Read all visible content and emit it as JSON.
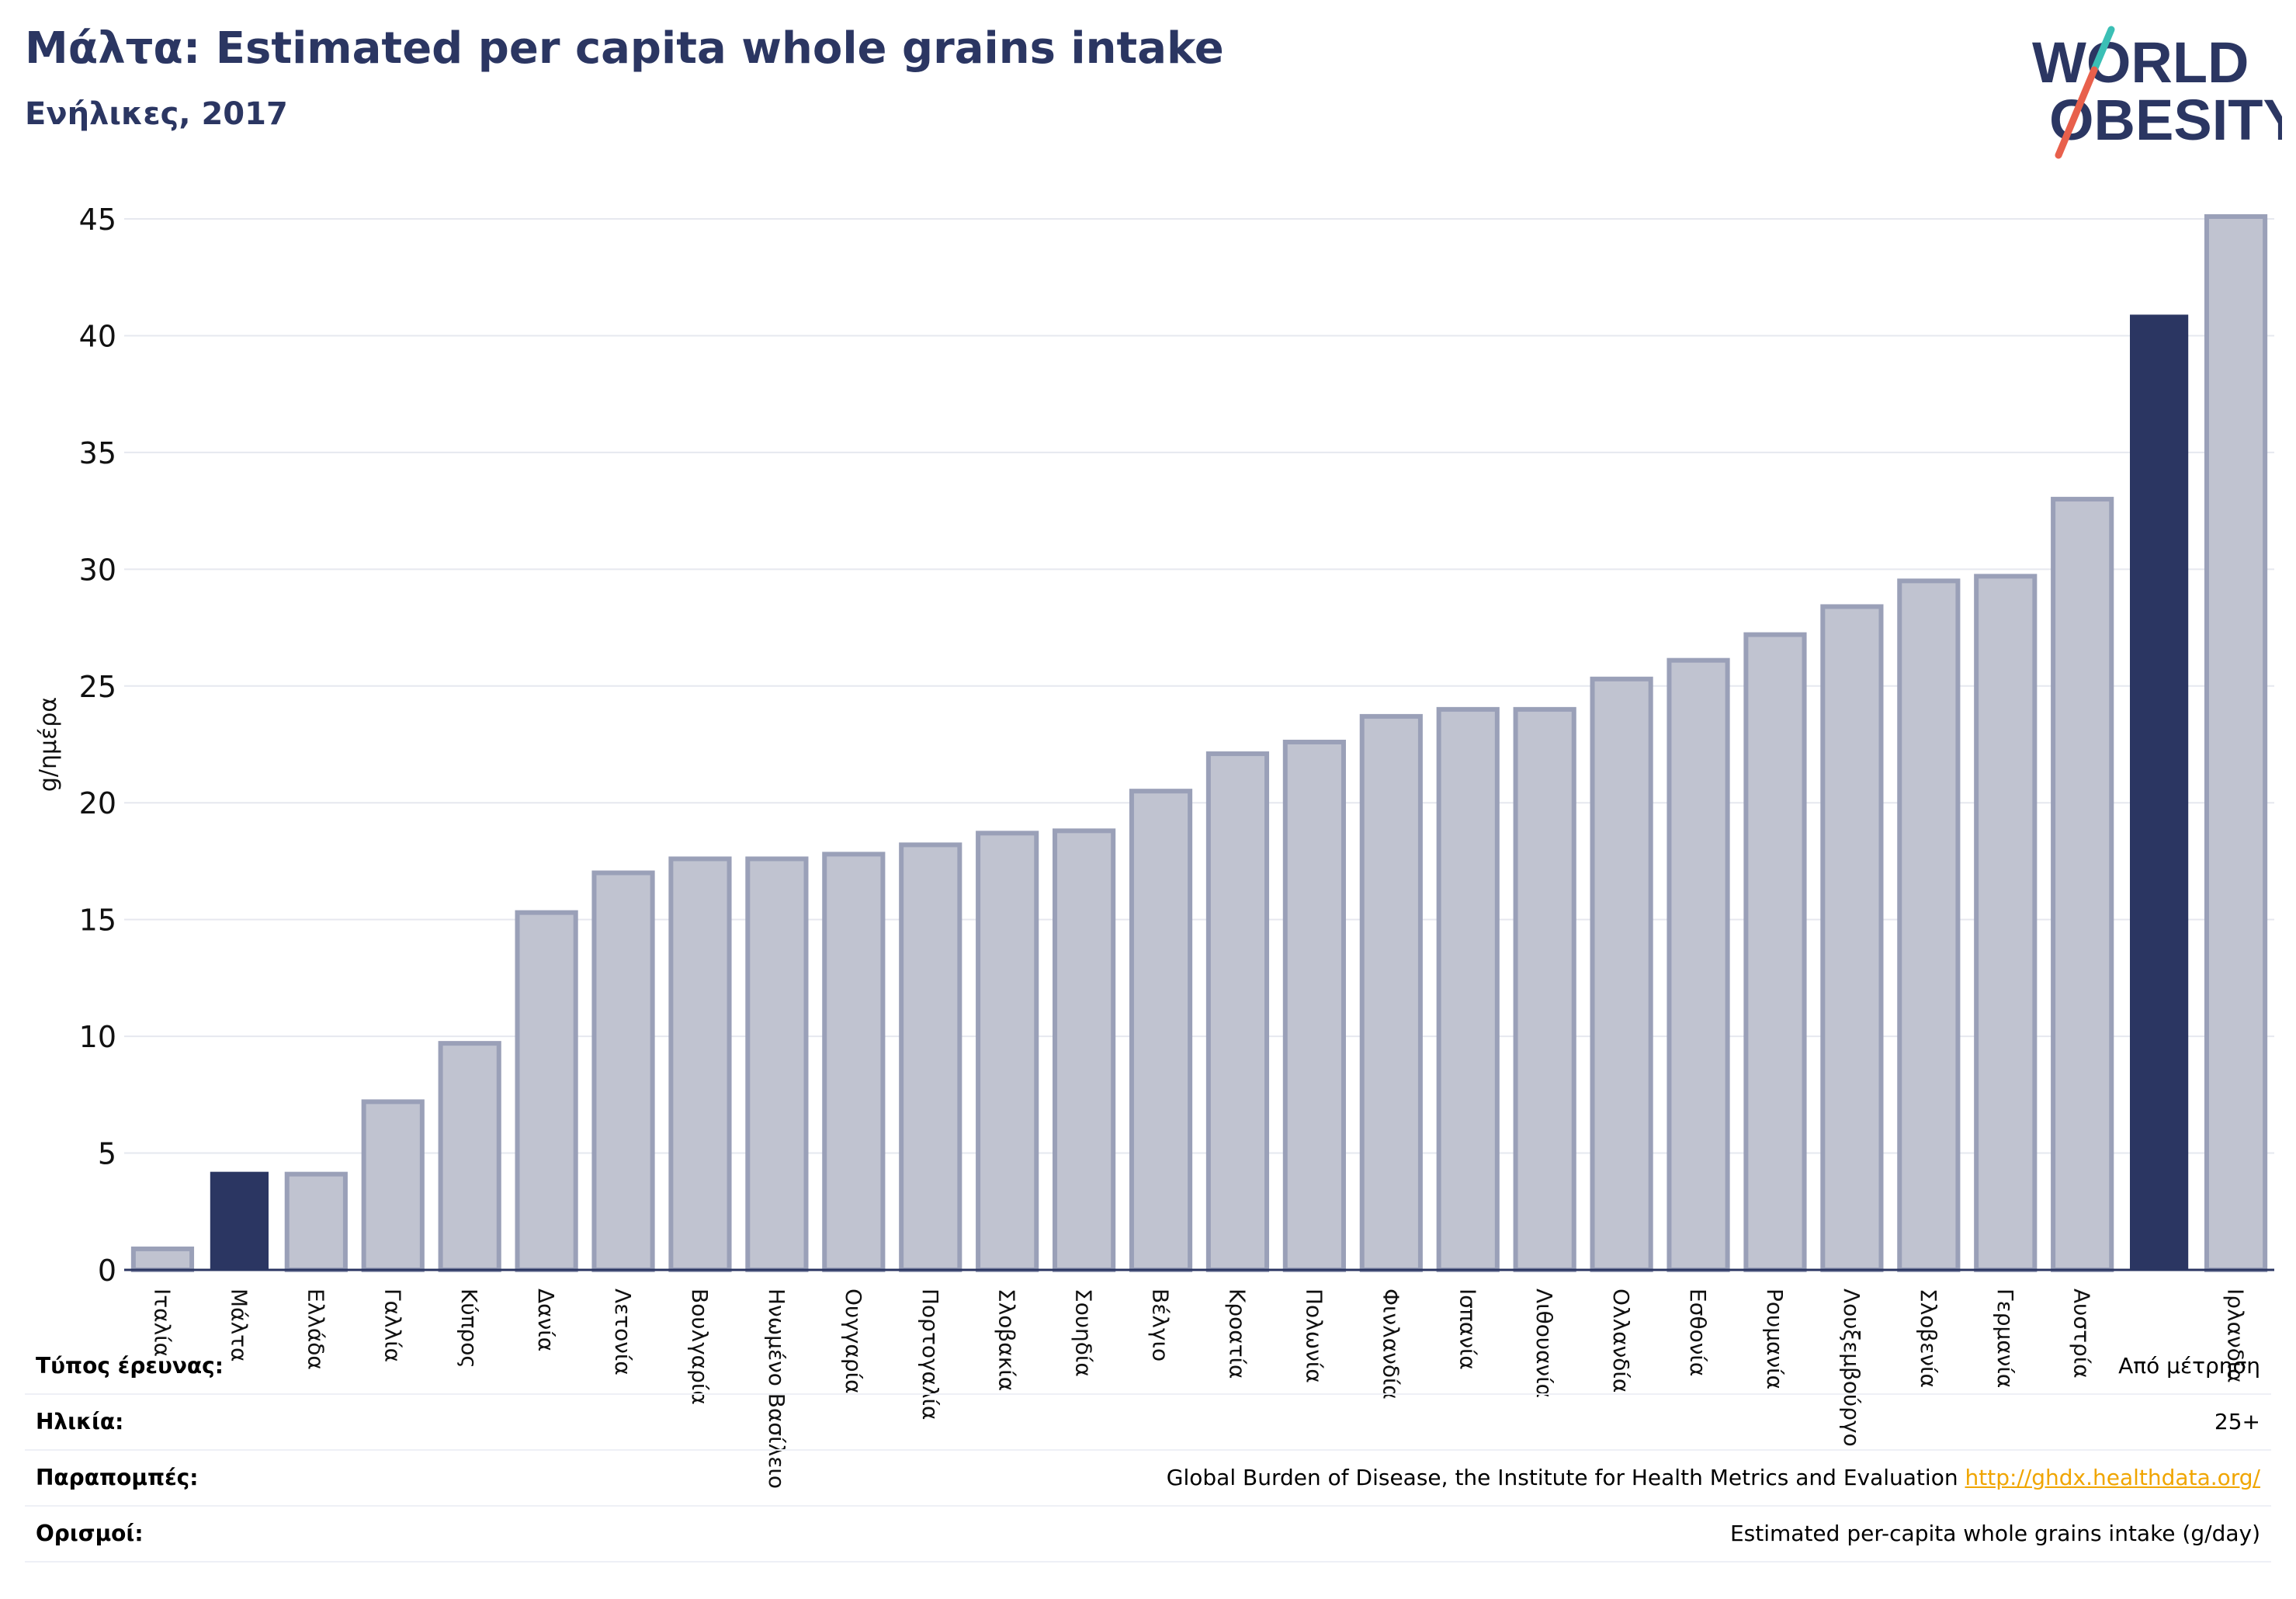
{
  "header": {
    "title": "Μάλτα: Estimated per capita whole grains intake",
    "subtitle": "Ενήλικες, 2017"
  },
  "logo": {
    "line1": "WORLD",
    "line2": "OBESITY"
  },
  "colors": {
    "highlight": "#2b3662",
    "bar_fill": "#c0c3d0",
    "bar_edge": "#9aa0b8",
    "text": "#2b3662",
    "grid": "#e6e8ef",
    "logo_teal": "#3bbfb5",
    "logo_red": "#e8604c",
    "link": "#f0a500"
  },
  "chart_data": {
    "type": "bar",
    "ylabel": "g/ημέρα",
    "ylim": [
      0,
      45
    ],
    "yticks": [
      0,
      5,
      10,
      15,
      20,
      25,
      30,
      35,
      40,
      45
    ],
    "grid": true,
    "categories": [
      "Ιταλία",
      "Μάλτα",
      "Ελλάδα",
      "Γαλλία",
      "Κύπρος",
      "Δανία",
      "Λετονία",
      "Βουλγαρία",
      "Ηνωμένο Βασίλειο",
      "Ουγγαρία",
      "Πορτογαλία",
      "Σλοβακία",
      "Σουηδία",
      "Βέλγιο",
      "Κροατία",
      "Πολωνία",
      "Φινλανδία",
      "Ισπανία",
      "Λιθουανία",
      "Ολλανδία",
      "Εσθονία",
      "Ρουμανία",
      "Λουξεμβούργο",
      "Σλοβενία",
      "Γερμανία",
      "Αυστρία",
      "",
      "Ιρλανδία"
    ],
    "values": [
      0.9,
      4.2,
      4.1,
      7.2,
      9.7,
      15.3,
      17.0,
      17.6,
      17.6,
      17.8,
      18.2,
      18.7,
      18.8,
      20.5,
      22.1,
      22.6,
      23.7,
      24.0,
      24.0,
      25.3,
      26.1,
      27.2,
      28.4,
      29.5,
      29.7,
      33.0,
      40.9,
      45.1
    ],
    "highlighted": [
      1,
      26
    ]
  },
  "meta": {
    "rows": [
      {
        "label": "Τύπος έρευνας:",
        "value": "Από μέτρηση"
      },
      {
        "label": "Ηλικία:",
        "value": "25+"
      },
      {
        "label": "Παραπομπές:",
        "value": "Global Burden of Disease, the Institute for Health Metrics and Evaluation",
        "link": "http://ghdx.healthdata.org/"
      },
      {
        "label": "Ορισμοί:",
        "value": "Estimated per-capita whole grains intake (g/day)"
      }
    ]
  }
}
